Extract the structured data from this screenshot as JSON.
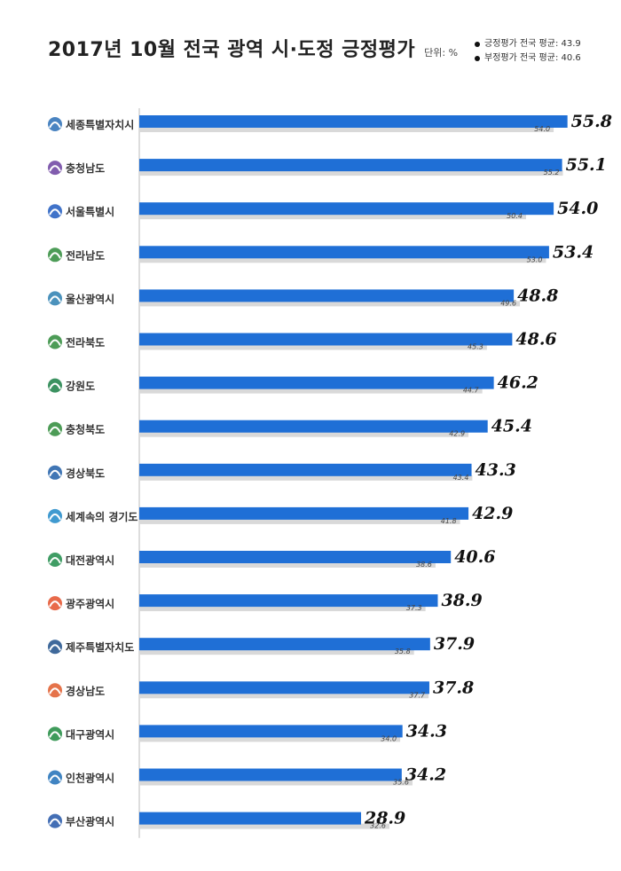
{
  "header": {
    "title": "2017년 10월 전국 광역 시·도정 긍정평가",
    "unit": "단위: %"
  },
  "legend": {
    "items": [
      "긍정평가 전국 평균: 43.9",
      "부정평가 전국 평균: 40.6"
    ]
  },
  "colors": {
    "positive_bar": "#1f6fd6",
    "negative_bar": "#d9d9d9"
  },
  "chart_data": {
    "type": "bar",
    "orientation": "horizontal",
    "categories": [
      "세종특별자치시",
      "충청남도",
      "서울특별시",
      "전라남도",
      "울산광역시",
      "전라북도",
      "강원도",
      "충청북도",
      "경상북도",
      "경기도",
      "대전광역시",
      "광주광역시",
      "제주특별자치도",
      "경상남도",
      "대구광역시",
      "인천광역시",
      "부산광역시"
    ],
    "series": [
      {
        "name": "긍정평가",
        "values": [
          55.8,
          55.1,
          54.0,
          53.4,
          48.8,
          48.6,
          46.2,
          45.4,
          43.3,
          42.9,
          40.6,
          38.9,
          37.9,
          37.8,
          34.3,
          34.2,
          28.9
        ]
      },
      {
        "name": "부정평가",
        "values": [
          54.0,
          55.2,
          50.4,
          53.0,
          49.6,
          45.3,
          44.7,
          42.9,
          43.4,
          41.8,
          38.6,
          37.3,
          35.8,
          37.7,
          34.0,
          35.6,
          32.6
        ]
      }
    ],
    "value_labels_positive": [
      "55.8",
      "55.1",
      "54.0",
      "53.4",
      "48.8",
      "48.6",
      "46.2",
      "45.4",
      "43.3",
      "42.9",
      "40.6",
      "38.9",
      "37.9",
      "37.8",
      "34.3",
      "34.2",
      "28.9"
    ],
    "value_labels_negative": [
      "54.0",
      "55.2",
      "50.4",
      "53.0",
      "49.6",
      "45.3",
      "44.7",
      "42.9",
      "43.4",
      "41.8",
      "38.6",
      "37.3",
      "35.8",
      "37.7",
      "34.0",
      "35.6",
      "32.6"
    ],
    "logo_labels": [
      "세종특별자치시",
      "충청남도",
      "서울특별시",
      "전라남도",
      "울산광역시",
      "전라북도",
      "강원도",
      "충청북도",
      "경상북도",
      "세계속의 경기도",
      "대전광역시",
      "광주광역시",
      "제주특별자치도",
      "경상남도",
      "대구광역시",
      "인천광역시",
      "부산광역시"
    ],
    "logo_colors": [
      "#2a6fb6",
      "#6b3fa0",
      "#1e5bbf",
      "#2e8b3a",
      "#2b7fb0",
      "#2e8b3a",
      "#1a7f45",
      "#2e8b3a",
      "#1f5ea8",
      "#1e88c8",
      "#1f8c4a",
      "#e4502a",
      "#1d4f8a",
      "#e05a2a",
      "#1d8a3e",
      "#1e6fb7",
      "#2356a8"
    ],
    "xlim": [
      0,
      60
    ]
  }
}
